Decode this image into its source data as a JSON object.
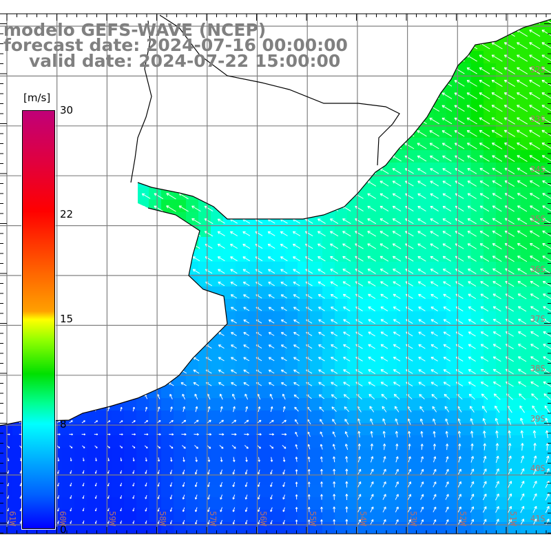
{
  "title": {
    "model": "modelo GEFS-WAVE (NCEP)",
    "forecast": "forecast date: 2024-07-16 00:00:00",
    "valid": "valid date: 2024-07-22 15:00:00"
  },
  "colorbar": {
    "unit": "[m/s]",
    "labels": [
      "30",
      "22",
      "15",
      "8",
      "0"
    ],
    "min": 0,
    "max": 30
  },
  "lat_labels": [
    "32S",
    "33S",
    "34S",
    "35S",
    "36S",
    "37S",
    "38S",
    "39S",
    "40S",
    "41S"
  ],
  "lon_labels": [
    "61W",
    "60W",
    "59W",
    "58W",
    "57W",
    "56W",
    "55W",
    "54W",
    "53W",
    "52W",
    "51W"
  ],
  "colors": {
    "land": "#ffffff",
    "coast": "#000000",
    "grid": "#808080",
    "title": "#808080"
  }
}
